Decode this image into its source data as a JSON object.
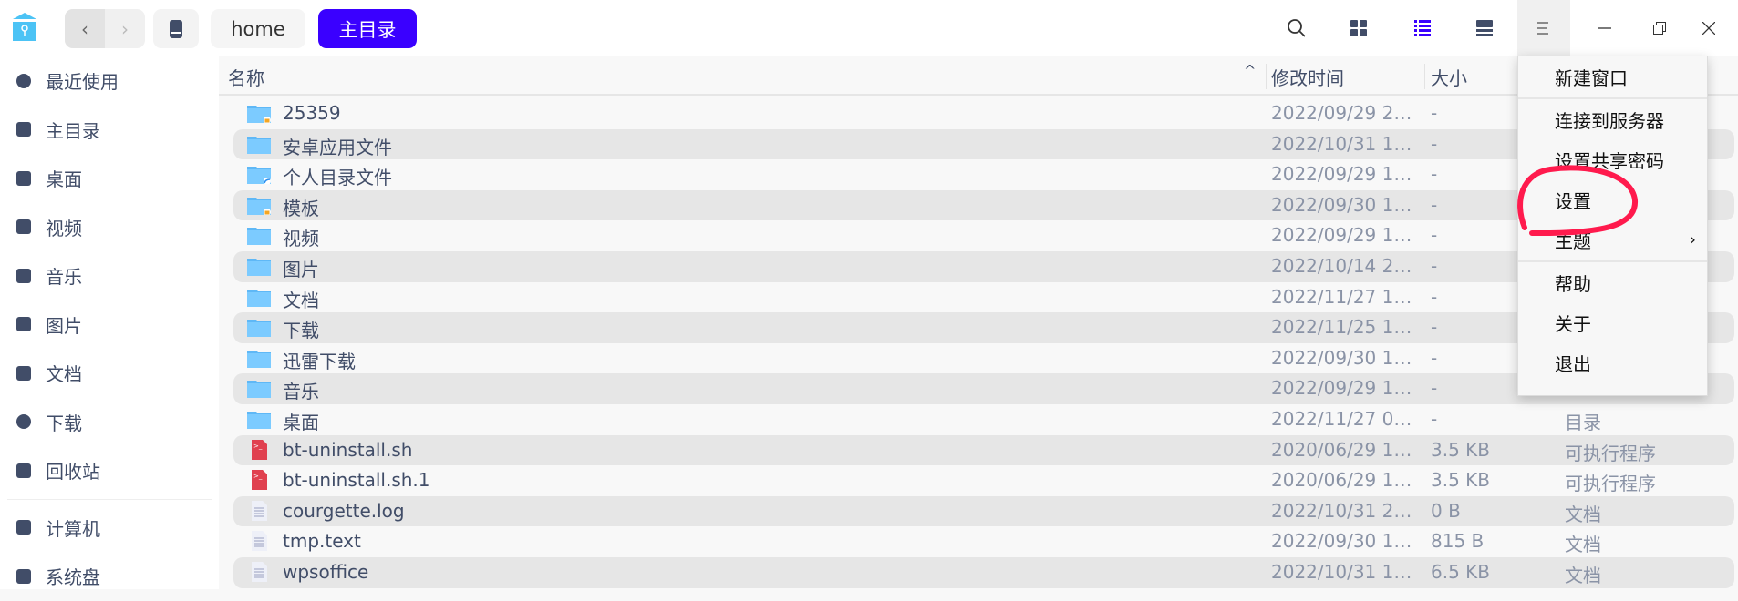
{
  "accent": "#3a00ff",
  "toolbar": {
    "back_icon": "chevron-left-icon",
    "forward_icon": "chevron-right-icon",
    "breadcrumbs": [
      "home",
      "主目录"
    ],
    "icons": [
      "search-icon",
      "grid-view-icon",
      "list-view-icon",
      "detail-view-icon",
      "menu-icon",
      "minimize-icon",
      "maximize-icon",
      "close-icon"
    ]
  },
  "sidebar": {
    "items": [
      {
        "label": "最近使用",
        "icon": "clock-icon"
      },
      {
        "label": "主目录",
        "icon": "home-icon"
      },
      {
        "label": "桌面",
        "icon": "desktop-icon"
      },
      {
        "label": "视频",
        "icon": "video-icon"
      },
      {
        "label": "音乐",
        "icon": "music-icon"
      },
      {
        "label": "图片",
        "icon": "picture-icon"
      },
      {
        "label": "文档",
        "icon": "document-icon"
      },
      {
        "label": "下载",
        "icon": "download-icon"
      },
      {
        "label": "回收站",
        "icon": "trash-icon"
      }
    ],
    "devices": [
      {
        "label": "计算机",
        "icon": "computer-icon"
      },
      {
        "label": "系统盘",
        "icon": "disk-icon"
      }
    ]
  },
  "columns": {
    "name": "名称",
    "modified": "修改时间",
    "size": "大小"
  },
  "files": [
    {
      "name": "25359",
      "modified": "2022/09/29 2…",
      "size": "-",
      "type": "",
      "kind": "folder-lock"
    },
    {
      "name": "安卓应用文件",
      "modified": "2022/10/31 1…",
      "size": "-",
      "type": "",
      "kind": "folder"
    },
    {
      "name": "个人目录文件",
      "modified": "2022/09/29 1…",
      "size": "-",
      "type": "",
      "kind": "folder-share"
    },
    {
      "name": "模板",
      "modified": "2022/09/30 1…",
      "size": "-",
      "type": "",
      "kind": "folder-lock"
    },
    {
      "name": "视频",
      "modified": "2022/09/29 1…",
      "size": "-",
      "type": "",
      "kind": "folder"
    },
    {
      "name": "图片",
      "modified": "2022/10/14 2…",
      "size": "-",
      "type": "",
      "kind": "folder"
    },
    {
      "name": "文档",
      "modified": "2022/11/27 1…",
      "size": "-",
      "type": "",
      "kind": "folder"
    },
    {
      "name": "下载",
      "modified": "2022/11/25 1…",
      "size": "-",
      "type": "",
      "kind": "folder"
    },
    {
      "name": "迅雷下载",
      "modified": "2022/09/30 1…",
      "size": "-",
      "type": "",
      "kind": "folder"
    },
    {
      "name": "音乐",
      "modified": "2022/09/29 1…",
      "size": "-",
      "type": "",
      "kind": "folder"
    },
    {
      "name": "桌面",
      "modified": "2022/11/27 0…",
      "size": "-",
      "type": "目录",
      "kind": "folder"
    },
    {
      "name": "bt-uninstall.sh",
      "modified": "2020/06/29 1…",
      "size": "3.5 KB",
      "type": "可执行程序",
      "kind": "script"
    },
    {
      "name": "bt-uninstall.sh.1",
      "modified": "2020/06/29 1…",
      "size": "3.5 KB",
      "type": "可执行程序",
      "kind": "script"
    },
    {
      "name": "courgette.log",
      "modified": "2022/10/31 2…",
      "size": "0 B",
      "type": "文档",
      "kind": "text"
    },
    {
      "name": "tmp.text",
      "modified": "2022/09/30 1…",
      "size": "815 B",
      "type": "文档",
      "kind": "text"
    },
    {
      "name": "wpsoffice",
      "modified": "2022/10/31 1…",
      "size": "6.5 KB",
      "type": "文档",
      "kind": "text"
    }
  ],
  "menu": {
    "items": [
      "新建窗口",
      "连接到服务器",
      "设置共享密码",
      "设置",
      "主题",
      "帮助",
      "关于",
      "退出"
    ],
    "submenu_arrow": "›"
  }
}
